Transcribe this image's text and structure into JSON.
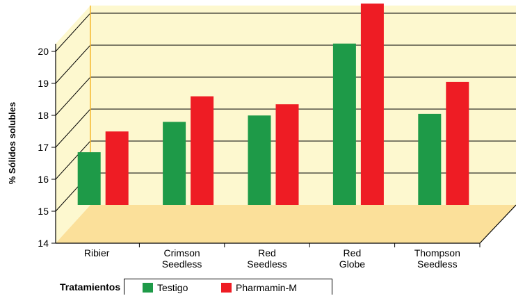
{
  "chart_data": {
    "type": "bar",
    "title": "",
    "xlabel": "",
    "ylabel": "% Sólidos solubles",
    "ylim": [
      14,
      20
    ],
    "yticks": [
      14,
      15,
      16,
      17,
      18,
      19,
      20
    ],
    "categories": [
      [
        "Ribier"
      ],
      [
        "Crimson",
        "Seedless"
      ],
      [
        "Red",
        "Seedless"
      ],
      [
        "Red",
        "Globe"
      ],
      [
        "Thompson",
        "Seedless"
      ]
    ],
    "series": [
      {
        "name": "Testigo",
        "color": "#1e9a48",
        "values": [
          15.65,
          16.6,
          16.8,
          19.05,
          16.85
        ]
      },
      {
        "name": "Pharmamin-M",
        "color": "#ee1c24",
        "values": [
          16.3,
          17.4,
          17.15,
          20.3,
          17.85
        ]
      }
    ],
    "grid": true,
    "legend_title": "Tratamientos",
    "legend_position": "bottom-left"
  }
}
